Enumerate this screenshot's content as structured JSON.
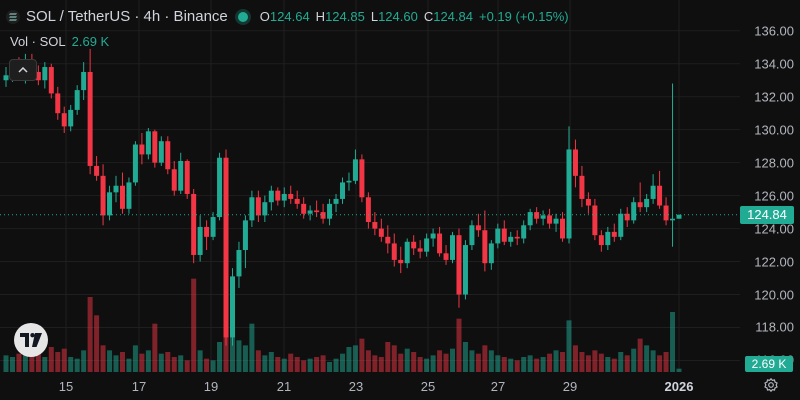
{
  "legend": {
    "symbol": "SOL / TetherUS · 4h · Binance",
    "ohlc": [
      {
        "key": "O",
        "value": "124.64"
      },
      {
        "key": "H",
        "value": "124.85"
      },
      {
        "key": "L",
        "value": "124.60"
      },
      {
        "key": "C",
        "value": "124.84"
      }
    ],
    "change": "+0.19 (+0.15%)"
  },
  "volume_legend": {
    "label": "Vol · SOL",
    "value": "2.69 K"
  },
  "price_axis": {
    "labels": [
      "136.00",
      "134.00",
      "132.00",
      "130.00",
      "128.00",
      "126.00",
      "124.00",
      "122.00",
      "120.00",
      "118.00",
      "116.00"
    ]
  },
  "time_axis": {
    "labels": [
      "15",
      "17",
      "19",
      "21",
      "23",
      "25",
      "27",
      "29",
      "2026"
    ]
  },
  "current": {
    "price": "124.84",
    "volume": "2.69 K"
  },
  "colors": {
    "up": "#22ab94",
    "down": "#f23645",
    "background": "#0f0f0f",
    "grid": "#1f1f1f"
  },
  "icons": {
    "symbol": "sol-symbol-icon",
    "live": "live-status-dot",
    "collapse": "chevron-up-icon",
    "logo": "tradingview-logo",
    "settings": "gear-icon"
  },
  "chart_data": {
    "type": "candlestick",
    "title": "SOL / TetherUS · 4h · Binance",
    "ylim": [
      115.3,
      137.2
    ],
    "x_ticks": [
      "15",
      "17",
      "19",
      "21",
      "23",
      "25",
      "27",
      "29",
      "2026"
    ],
    "candles": [
      [
        133.0,
        133.8,
        132.6,
        133.3
      ],
      [
        133.3,
        134.2,
        132.9,
        133.6
      ],
      [
        133.6,
        134.4,
        133.0,
        133.2
      ],
      [
        133.2,
        134.6,
        132.8,
        134.0
      ],
      [
        134.0,
        134.6,
        133.1,
        133.5
      ],
      [
        133.5,
        133.9,
        132.7,
        133.0
      ],
      [
        133.0,
        134.1,
        132.5,
        133.8
      ],
      [
        133.8,
        134.0,
        131.9,
        132.2
      ],
      [
        132.2,
        132.6,
        130.6,
        131.0
      ],
      [
        131.0,
        131.4,
        129.8,
        130.2
      ],
      [
        130.2,
        131.5,
        129.9,
        131.2
      ],
      [
        131.2,
        132.7,
        130.9,
        132.4
      ],
      [
        132.4,
        134.1,
        131.8,
        133.5
      ],
      [
        133.5,
        134.9,
        127.3,
        127.8
      ],
      [
        127.8,
        128.4,
        126.9,
        127.2
      ],
      [
        127.2,
        127.9,
        124.2,
        124.8
      ],
      [
        124.8,
        126.6,
        124.5,
        126.2
      ],
      [
        126.2,
        127.2,
        125.6,
        126.6
      ],
      [
        126.6,
        127.4,
        124.9,
        125.2
      ],
      [
        125.2,
        127.1,
        124.9,
        126.8
      ],
      [
        126.8,
        129.3,
        126.6,
        129.1
      ],
      [
        129.1,
        129.8,
        127.9,
        128.5
      ],
      [
        128.5,
        130.1,
        128.2,
        129.9
      ],
      [
        129.9,
        130.0,
        127.7,
        128.0
      ],
      [
        128.0,
        129.6,
        127.8,
        129.3
      ],
      [
        129.3,
        129.6,
        127.3,
        127.6
      ],
      [
        127.6,
        128.1,
        126.0,
        126.3
      ],
      [
        126.3,
        128.6,
        126.1,
        128.1
      ],
      [
        128.1,
        128.2,
        125.8,
        126.1
      ],
      [
        126.1,
        126.4,
        121.9,
        122.4
      ],
      [
        122.4,
        124.8,
        122.0,
        124.1
      ],
      [
        124.1,
        124.5,
        122.7,
        123.5
      ],
      [
        123.5,
        125.0,
        123.3,
        124.7
      ],
      [
        124.7,
        128.6,
        124.5,
        128.3
      ],
      [
        128.3,
        128.8,
        116.9,
        117.4
      ],
      [
        117.4,
        121.6,
        116.9,
        121.1
      ],
      [
        121.1,
        123.2,
        120.4,
        122.7
      ],
      [
        122.7,
        124.8,
        121.6,
        124.5
      ],
      [
        124.5,
        126.3,
        124.1,
        125.9
      ],
      [
        125.9,
        126.3,
        124.4,
        124.8
      ],
      [
        124.8,
        126.0,
        124.4,
        125.6
      ],
      [
        125.6,
        126.6,
        125.1,
        126.3
      ],
      [
        126.3,
        126.5,
        125.4,
        125.7
      ],
      [
        125.7,
        126.5,
        125.3,
        126.1
      ],
      [
        126.1,
        126.6,
        125.5,
        125.8
      ],
      [
        125.8,
        126.3,
        125.2,
        125.5
      ],
      [
        125.5,
        125.9,
        124.6,
        124.9
      ],
      [
        124.9,
        125.4,
        124.5,
        125.1
      ],
      [
        125.1,
        125.7,
        124.7,
        125.0
      ],
      [
        125.0,
        125.5,
        124.3,
        124.6
      ],
      [
        124.6,
        125.8,
        124.2,
        125.5
      ],
      [
        125.5,
        126.1,
        125.0,
        125.8
      ],
      [
        125.8,
        127.1,
        125.5,
        126.8
      ],
      [
        126.8,
        127.4,
        126.3,
        126.9
      ],
      [
        126.9,
        128.8,
        126.7,
        128.2
      ],
      [
        128.2,
        128.5,
        125.6,
        125.9
      ],
      [
        125.9,
        126.2,
        124.0,
        124.4
      ],
      [
        124.4,
        125.0,
        123.6,
        124.0
      ],
      [
        124.0,
        124.6,
        123.2,
        123.5
      ],
      [
        123.5,
        124.2,
        122.5,
        123.1
      ],
      [
        123.1,
        123.7,
        121.7,
        122.1
      ],
      [
        122.1,
        122.9,
        121.3,
        121.9
      ],
      [
        121.9,
        123.4,
        121.6,
        123.2
      ],
      [
        123.2,
        123.6,
        122.4,
        122.8
      ],
      [
        122.8,
        123.3,
        122.2,
        122.6
      ],
      [
        122.6,
        123.7,
        122.3,
        123.4
      ],
      [
        123.4,
        124.0,
        122.9,
        123.7
      ],
      [
        123.7,
        124.1,
        122.3,
        122.5
      ],
      [
        122.5,
        123.0,
        121.8,
        122.1
      ],
      [
        122.1,
        123.8,
        121.9,
        123.6
      ],
      [
        123.6,
        124.0,
        119.2,
        120.0
      ],
      [
        120.0,
        123.3,
        119.7,
        123.0
      ],
      [
        123.0,
        124.5,
        122.7,
        124.2
      ],
      [
        124.2,
        124.9,
        123.5,
        123.9
      ],
      [
        123.9,
        125.1,
        121.4,
        121.9
      ],
      [
        121.9,
        123.3,
        121.5,
        123.1
      ],
      [
        123.1,
        124.3,
        122.8,
        124.0
      ],
      [
        124.0,
        124.5,
        123.0,
        123.2
      ],
      [
        123.2,
        123.8,
        122.9,
        123.5
      ],
      [
        123.5,
        123.9,
        123.0,
        123.4
      ],
      [
        123.4,
        124.5,
        123.1,
        124.2
      ],
      [
        124.2,
        125.2,
        123.9,
        125.0
      ],
      [
        125.0,
        125.3,
        124.3,
        124.6
      ],
      [
        124.6,
        125.1,
        124.2,
        124.8
      ],
      [
        124.8,
        125.2,
        124.0,
        124.3
      ],
      [
        124.3,
        124.9,
        123.8,
        124.6
      ],
      [
        124.6,
        125.0,
        123.2,
        123.4
      ],
      [
        123.4,
        130.2,
        123.1,
        128.8
      ],
      [
        128.8,
        129.4,
        126.5,
        127.2
      ],
      [
        127.2,
        127.8,
        125.3,
        125.8
      ],
      [
        125.8,
        126.2,
        124.9,
        125.4
      ],
      [
        125.4,
        125.8,
        123.3,
        123.6
      ],
      [
        123.6,
        123.9,
        122.6,
        123.0
      ],
      [
        123.0,
        124.1,
        122.7,
        123.8
      ],
      [
        123.8,
        124.3,
        123.2,
        123.5
      ],
      [
        123.5,
        125.2,
        123.3,
        124.9
      ],
      [
        124.9,
        125.3,
        124.1,
        124.5
      ],
      [
        124.5,
        125.9,
        124.3,
        125.6
      ],
      [
        125.6,
        126.8,
        125.0,
        125.3
      ],
      [
        125.3,
        126.1,
        125.0,
        125.8
      ],
      [
        125.8,
        127.3,
        125.5,
        126.6
      ],
      [
        126.6,
        127.5,
        125.2,
        125.4
      ],
      [
        125.4,
        125.9,
        124.2,
        124.5
      ],
      [
        124.5,
        132.8,
        122.9,
        124.6
      ],
      [
        124.6,
        124.85,
        124.6,
        124.84
      ]
    ],
    "volumes": [
      1.0,
      0.9,
      1.1,
      1.2,
      1.0,
      1.3,
      0.9,
      1.5,
      1.2,
      1.4,
      0.9,
      0.8,
      1.3,
      4.5,
      3.4,
      1.6,
      1.3,
      1.0,
      1.2,
      0.8,
      1.6,
      1.1,
      1.3,
      2.9,
      1.1,
      1.2,
      0.9,
      1.0,
      0.7,
      5.6,
      1.3,
      0.8,
      0.7,
      1.8,
      5.9,
      4.1,
      1.9,
      1.6,
      2.9,
      1.3,
      1.0,
      1.2,
      0.9,
      0.8,
      1.1,
      0.9,
      0.7,
      0.8,
      0.9,
      1.0,
      0.6,
      0.8,
      1.1,
      1.5,
      1.6,
      2.0,
      1.3,
      1.0,
      0.9,
      1.8,
      1.6,
      1.1,
      1.4,
      1.2,
      0.9,
      0.8,
      1.0,
      1.3,
      1.1,
      1.4,
      3.2,
      1.8,
      1.3,
      1.1,
      1.6,
      1.3,
      1.0,
      0.9,
      0.8,
      0.7,
      0.9,
      1.0,
      0.8,
      0.9,
      1.1,
      1.3,
      1.2,
      3.1,
      1.6,
      1.2,
      1.0,
      1.3,
      1.1,
      0.9,
      0.8,
      1.2,
      1.0,
      1.4,
      2.0,
      1.6,
      1.3,
      1.0,
      1.2,
      3.6,
      0.2
    ]
  }
}
